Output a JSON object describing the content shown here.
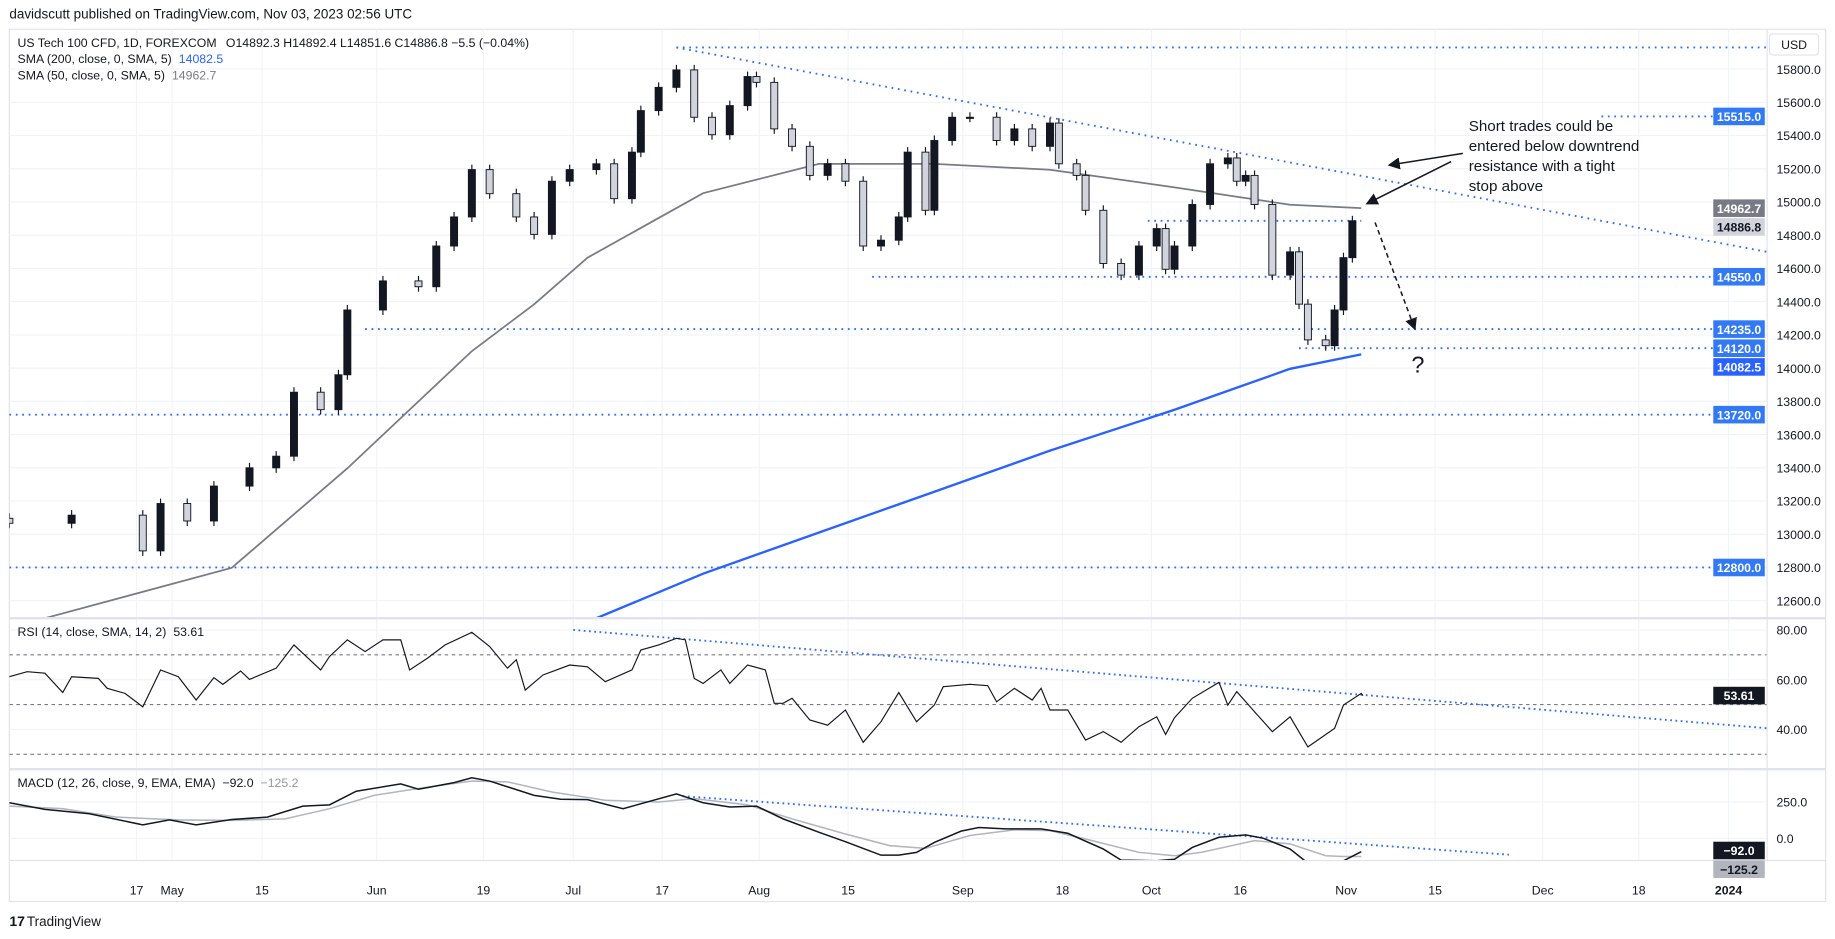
{
  "header": {
    "published": "davidscutt published on TradingView.com, Nov 03, 2023 02:56 UTC"
  },
  "legend": {
    "symbol": "US Tech 100 CFD, 1D, FOREXCOM",
    "ohlc": "O14892.3  H14892.4  L14851.6  C14886.8  −5.5 (−0.04%)",
    "sma200_label": "SMA (200, close, 0, SMA, 5)",
    "sma200_value": "14082.5",
    "sma50_label": "SMA (50, close, 0, SMA, 5)",
    "sma50_value": "14962.7",
    "rsi_label": "RSI (14, close, SMA, 14, 2)",
    "rsi_value": "53.61",
    "macd_label": "MACD (12, 26, close, 9, EMA, EMA)",
    "macd_value": "−92.0",
    "macd_signal": "−125.2"
  },
  "currency": "USD",
  "annotation": [
    "Short trades could be",
    "entered below downtrend",
    "resistance with a tight",
    "stop above"
  ],
  "question_mark": "?",
  "branding": "TradingView",
  "colors": {
    "level": "#2e6ff2",
    "sma200": "#2962ff",
    "sma50": "#787b86",
    "badge_blue": "#3179f5",
    "up": "#131722",
    "down": "#d1d4dc"
  },
  "chart_data": {
    "type": "candlestick",
    "title": "US Tech 100 CFD, 1D, FOREXCOM",
    "price_ticks": [
      "15800.0",
      "15600.0",
      "15400.0",
      "15200.0",
      "15000.0",
      "14800.0",
      "14600.0",
      "14400.0",
      "14200.0",
      "14000.0",
      "13800.0",
      "13600.0",
      "13400.0",
      "13200.0",
      "13000.0",
      "12800.0",
      "12600.0"
    ],
    "ylim": [
      12500,
      15950
    ],
    "time_ticks": [
      "17",
      "May",
      "15",
      "Jun",
      "19",
      "Jul",
      "17",
      "Aug",
      "15",
      "Sep",
      "18",
      "Oct",
      "16",
      "Nov",
      "15",
      "Dec",
      "18",
      "2024"
    ],
    "closes": [
      [
        0,
        13066
      ],
      [
        7,
        13115
      ],
      [
        15,
        12900
      ],
      [
        17,
        13185
      ],
      [
        20,
        13080
      ],
      [
        23,
        13290
      ],
      [
        27,
        13400
      ],
      [
        30,
        13470
      ],
      [
        32,
        13855
      ],
      [
        35,
        13750
      ],
      [
        37,
        13960
      ],
      [
        38,
        14350
      ],
      [
        42,
        14525
      ],
      [
        46,
        14490
      ],
      [
        48,
        14735
      ],
      [
        50,
        14910
      ],
      [
        52,
        15195
      ],
      [
        54,
        15050
      ],
      [
        57,
        14910
      ],
      [
        59,
        14805
      ],
      [
        61,
        15125
      ],
      [
        63,
        15195
      ],
      [
        66,
        15230
      ],
      [
        68,
        15020
      ],
      [
        70,
        15300
      ],
      [
        71,
        15550
      ],
      [
        73,
        15690
      ],
      [
        75,
        15795
      ],
      [
        77,
        15510
      ],
      [
        79,
        15405
      ],
      [
        81,
        15580
      ],
      [
        83,
        15755
      ],
      [
        84,
        15720
      ],
      [
        86,
        15440
      ],
      [
        88,
        15335
      ],
      [
        90,
        15160
      ],
      [
        92,
        15230
      ],
      [
        94,
        15125
      ],
      [
        96,
        14735
      ],
      [
        98,
        14770
      ],
      [
        100,
        14910
      ],
      [
        101,
        15300
      ],
      [
        103,
        14950
      ],
      [
        104,
        15370
      ],
      [
        106,
        15510
      ],
      [
        108,
        15510
      ],
      [
        111,
        15370
      ],
      [
        113,
        15440
      ],
      [
        115,
        15335
      ],
      [
        117,
        15475
      ],
      [
        118,
        15230
      ],
      [
        120,
        15160
      ],
      [
        121,
        14950
      ],
      [
        123,
        14630
      ],
      [
        125,
        14560
      ],
      [
        127,
        14735
      ],
      [
        129,
        14840
      ],
      [
        130,
        14595
      ],
      [
        131,
        14735
      ],
      [
        133,
        14985
      ],
      [
        135,
        15230
      ],
      [
        137,
        15265
      ],
      [
        138,
        15125
      ],
      [
        139,
        15160
      ],
      [
        140,
        14985
      ],
      [
        142,
        14560
      ],
      [
        144,
        14700
      ],
      [
        145,
        14385
      ],
      [
        146,
        14170
      ],
      [
        148,
        14135
      ],
      [
        149,
        14350
      ],
      [
        150,
        14665
      ],
      [
        151,
        14886.8
      ]
    ],
    "sma50": [
      [
        4,
        12495
      ],
      [
        25,
        12798
      ],
      [
        38,
        13397
      ],
      [
        52,
        14102
      ],
      [
        59,
        14384
      ],
      [
        65,
        14665
      ],
      [
        78,
        15053
      ],
      [
        91,
        15229
      ],
      [
        104,
        15229
      ],
      [
        117,
        15194
      ],
      [
        131,
        15088
      ],
      [
        144,
        14983
      ],
      [
        152,
        14962.7
      ]
    ],
    "sma200": [
      [
        66,
        12495
      ],
      [
        78,
        12763
      ],
      [
        91,
        13010
      ],
      [
        104,
        13256
      ],
      [
        117,
        13503
      ],
      [
        131,
        13749
      ],
      [
        144,
        13996
      ],
      [
        152,
        14082.5
      ]
    ],
    "levels": [
      {
        "price": 15930,
        "from": 75,
        "label": ""
      },
      {
        "price": 15515,
        "from": 179,
        "label": "15515.0"
      },
      {
        "price": 14886.8,
        "from": 128,
        "to": 152,
        "label": ""
      },
      {
        "price": 14550,
        "from": 97,
        "label": "14550.0"
      },
      {
        "price": 14235,
        "from": 40,
        "label": "14235.0"
      },
      {
        "price": 14120,
        "from": 145,
        "label": "14120.0"
      },
      {
        "price": 13720,
        "from": 0,
        "label": "13720.0"
      },
      {
        "price": 12800,
        "from": 0,
        "label": "12800.0"
      }
    ],
    "downtrend": [
      [
        75,
        15930
      ],
      [
        197.6,
        14700
      ]
    ],
    "last_price": "14886.8",
    "sma50_last": "14962.7",
    "sma200_last": "14082.5",
    "rsi": {
      "ticks": [
        "80.00",
        "60.00",
        "40.00"
      ],
      "bands": [
        70,
        50,
        30
      ],
      "values": [
        [
          0,
          61.2
        ],
        [
          2,
          63.2
        ],
        [
          4,
          62.6
        ],
        [
          6,
          54.8
        ],
        [
          7,
          61.2
        ],
        [
          10,
          60.5
        ],
        [
          11,
          56.5
        ],
        [
          13,
          54.5
        ],
        [
          15,
          49.1
        ],
        [
          17,
          63.9
        ],
        [
          19,
          61.2
        ],
        [
          21,
          51.8
        ],
        [
          23,
          60.8
        ],
        [
          24,
          58.1
        ],
        [
          26,
          63.5
        ],
        [
          27,
          60.1
        ],
        [
          30,
          64.6
        ],
        [
          32,
          74
        ],
        [
          33,
          70.6
        ],
        [
          35,
          63.9
        ],
        [
          36,
          69.3
        ],
        [
          38,
          76
        ],
        [
          40,
          71.3
        ],
        [
          42,
          76
        ],
        [
          44,
          76
        ],
        [
          45,
          63.9
        ],
        [
          47,
          68.6
        ],
        [
          49,
          74
        ],
        [
          52,
          79
        ],
        [
          54,
          73.3
        ],
        [
          56,
          64.6
        ],
        [
          57,
          68
        ],
        [
          58,
          55.8
        ],
        [
          60,
          61.9
        ],
        [
          63,
          65.9
        ],
        [
          65,
          65.2
        ],
        [
          67,
          59.2
        ],
        [
          70,
          63.9
        ],
        [
          71,
          71.9
        ],
        [
          73,
          74
        ],
        [
          75,
          76.6
        ],
        [
          76,
          76
        ],
        [
          77,
          60.5
        ],
        [
          78,
          58.5
        ],
        [
          80,
          63.9
        ],
        [
          81,
          58.5
        ],
        [
          83,
          65.9
        ],
        [
          85,
          63.9
        ],
        [
          86,
          50.5
        ],
        [
          87,
          50.5
        ],
        [
          88,
          52.5
        ],
        [
          90,
          43.8
        ],
        [
          92,
          41.7
        ],
        [
          94,
          47.8
        ],
        [
          96,
          34.8
        ],
        [
          98,
          43.1
        ],
        [
          100,
          54.8
        ],
        [
          102,
          43.1
        ],
        [
          104,
          49.8
        ],
        [
          105,
          57.2
        ],
        [
          108,
          58.1
        ],
        [
          110,
          57.6
        ],
        [
          111,
          51.1
        ],
        [
          113,
          56.5
        ],
        [
          115,
          51.8
        ],
        [
          116,
          56.5
        ],
        [
          117,
          47.8
        ],
        [
          119,
          47.8
        ],
        [
          121,
          35.7
        ],
        [
          123,
          39.1
        ],
        [
          125,
          34.8
        ],
        [
          127,
          41.1
        ],
        [
          129,
          45.1
        ],
        [
          130,
          38
        ],
        [
          131,
          44.7
        ],
        [
          133,
          52.5
        ],
        [
          136,
          58.9
        ],
        [
          137,
          49.8
        ],
        [
          138,
          55.2
        ],
        [
          140,
          47.1
        ],
        [
          142,
          39.1
        ],
        [
          144,
          45.1
        ],
        [
          146,
          33
        ],
        [
          149,
          40.4
        ],
        [
          150,
          49.8
        ],
        [
          152,
          54.5
        ],
        [
          152.2,
          53.61
        ]
      ],
      "trend": [
        [
          63.4,
          80
        ],
        [
          197.6,
          40.5
        ]
      ]
    },
    "macd": {
      "ticks": [
        "250.0",
        "0.0"
      ],
      "macd": [
        [
          0,
          245
        ],
        [
          4,
          199
        ],
        [
          9,
          169
        ],
        [
          15,
          93
        ],
        [
          18,
          127
        ],
        [
          21,
          93
        ],
        [
          25,
          130
        ],
        [
          29,
          146
        ],
        [
          33,
          222
        ],
        [
          36,
          231
        ],
        [
          39,
          324
        ],
        [
          44,
          375
        ],
        [
          46,
          338
        ],
        [
          50,
          384
        ],
        [
          52,
          417
        ],
        [
          54,
          394
        ],
        [
          59,
          296
        ],
        [
          62,
          269
        ],
        [
          65,
          266
        ],
        [
          69,
          204
        ],
        [
          75,
          306
        ],
        [
          78,
          245
        ],
        [
          81,
          215
        ],
        [
          84,
          222
        ],
        [
          87,
          134
        ],
        [
          91,
          42
        ],
        [
          94,
          -23
        ],
        [
          98,
          -116
        ],
        [
          100,
          -116
        ],
        [
          102,
          -97
        ],
        [
          104,
          -28
        ],
        [
          107,
          49
        ],
        [
          109,
          74
        ],
        [
          112,
          65
        ],
        [
          116,
          65
        ],
        [
          119,
          35
        ],
        [
          123,
          -74
        ],
        [
          125,
          -150
        ],
        [
          129,
          -155
        ],
        [
          131,
          -144
        ],
        [
          133,
          -63
        ],
        [
          136,
          7
        ],
        [
          139,
          23
        ],
        [
          141,
          0
        ],
        [
          144,
          -74
        ],
        [
          146,
          -171
        ],
        [
          148,
          -190
        ],
        [
          150,
          -155
        ],
        [
          152,
          -92
        ]
      ],
      "signal": [
        [
          0,
          222
        ],
        [
          6,
          204
        ],
        [
          12,
          146
        ],
        [
          19,
          127
        ],
        [
          25,
          123
        ],
        [
          31,
          134
        ],
        [
          36,
          204
        ],
        [
          41,
          296
        ],
        [
          46,
          343
        ],
        [
          52,
          394
        ],
        [
          56,
          389
        ],
        [
          61,
          319
        ],
        [
          67,
          262
        ],
        [
          73,
          250
        ],
        [
          77,
          273
        ],
        [
          83,
          231
        ],
        [
          88,
          134
        ],
        [
          94,
          30
        ],
        [
          99,
          -51
        ],
        [
          103,
          -69
        ],
        [
          108,
          19
        ],
        [
          113,
          58
        ],
        [
          117,
          53
        ],
        [
          121,
          -5
        ],
        [
          127,
          -97
        ],
        [
          131,
          -120
        ],
        [
          134,
          -97
        ],
        [
          140,
          -16
        ],
        [
          144,
          -39
        ],
        [
          148,
          -120
        ],
        [
          150,
          -125
        ],
        [
          152,
          -125.2
        ]
      ],
      "trend": [
        [
          75.7,
          290
        ],
        [
          168.6,
          -113
        ]
      ]
    }
  }
}
